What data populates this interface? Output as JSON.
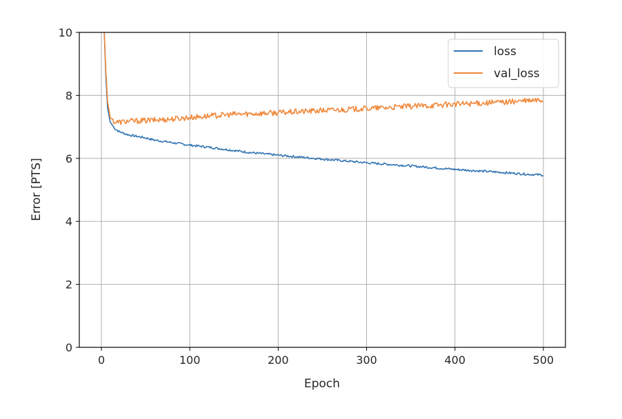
{
  "chart_data": {
    "type": "line",
    "title": "",
    "xlabel": "Epoch",
    "ylabel": "Error [PTS]",
    "xlim": [
      -25,
      525
    ],
    "ylim": [
      0,
      10
    ],
    "xticks": [
      0,
      100,
      200,
      300,
      400,
      500
    ],
    "yticks": [
      0,
      2,
      4,
      6,
      8,
      10
    ],
    "grid": true,
    "legend_position": "top-right",
    "colors": {
      "loss": "#3274b2",
      "val_loss": "#f0883a",
      "grid": "#b0b0b0",
      "axes": "#000000"
    },
    "series": [
      {
        "name": "loss",
        "x": [
          0,
          3,
          5,
          7,
          10,
          15,
          20,
          30,
          40,
          50,
          60,
          80,
          100,
          120,
          150,
          170,
          200,
          250,
          300,
          350,
          400,
          450,
          480,
          500
        ],
        "y": [
          10.5,
          10.2,
          8.6,
          7.6,
          7.15,
          6.95,
          6.85,
          6.75,
          6.7,
          6.65,
          6.58,
          6.5,
          6.42,
          6.36,
          6.25,
          6.18,
          6.1,
          5.98,
          5.86,
          5.76,
          5.65,
          5.56,
          5.5,
          5.47
        ]
      },
      {
        "name": "val_loss",
        "x": [
          0,
          3,
          5,
          7,
          10,
          15,
          20,
          30,
          50,
          80,
          100,
          150,
          200,
          250,
          300,
          350,
          400,
          450,
          500
        ],
        "y": [
          10.5,
          10.2,
          8.8,
          7.8,
          7.3,
          7.15,
          7.15,
          7.18,
          7.2,
          7.25,
          7.3,
          7.4,
          7.45,
          7.52,
          7.58,
          7.65,
          7.72,
          7.78,
          7.85
        ]
      }
    ]
  }
}
